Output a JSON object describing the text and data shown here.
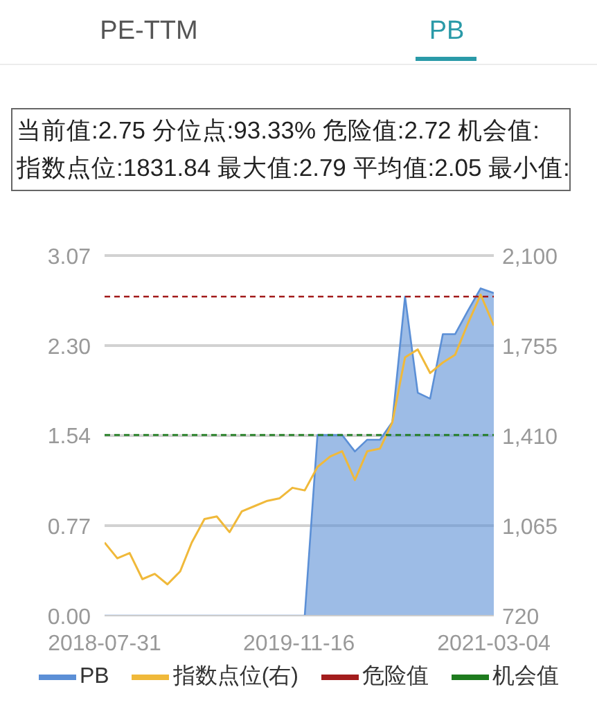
{
  "chart_data": {
    "type": "area",
    "annotations": [
      "PE-TTM",
      "PB",
      "当前值:2.75 分位点:93.33% 危险值:2.72 机会值:",
      "指数点位:1831.84 最大值:2.79 平均值:2.05 最小值:"
    ],
    "x": [
      "2018-07-31",
      "2018-08-31",
      "2018-09-30",
      "2018-10-31",
      "2018-11-30",
      "2018-12-31",
      "2019-01-31",
      "2019-02-28",
      "2019-03-31",
      "2019-04-30",
      "2019-05-31",
      "2019-06-30",
      "2019-07-31",
      "2019-08-31",
      "2019-09-30",
      "2019-10-31",
      "2019-11-30",
      "2019-12-31",
      "2020-01-31",
      "2020-02-29",
      "2020-03-31",
      "2020-04-30",
      "2020-05-31",
      "2020-06-30",
      "2020-07-31",
      "2020-08-31",
      "2020-09-30",
      "2020-10-31",
      "2020-11-30",
      "2020-12-31",
      "2021-01-31",
      "2021-03-04"
    ],
    "series": [
      {
        "name": "PB",
        "color": "#5b8fd6",
        "values": [
          0,
          0,
          0,
          0,
          0,
          0,
          0,
          0,
          0,
          0,
          0,
          0,
          0,
          0,
          0,
          0,
          0,
          1.54,
          1.54,
          1.54,
          1.4,
          1.5,
          1.5,
          1.65,
          2.72,
          1.9,
          1.85,
          2.4,
          2.4,
          2.6,
          2.79,
          2.75
        ]
      },
      {
        "name": "指数点位(右)",
        "type": "line",
        "color": "#f0b93a",
        "axis": "y2",
        "values": [
          1000,
          940,
          960,
          860,
          880,
          840,
          890,
          1000,
          1090,
          1100,
          1040,
          1120,
          1140,
          1160,
          1170,
          1210,
          1200,
          1290,
          1330,
          1350,
          1240,
          1350,
          1360,
          1460,
          1710,
          1740,
          1650,
          1690,
          1720,
          1840,
          1950,
          1831.84
        ]
      }
    ],
    "ref_lines": [
      {
        "axis": "y",
        "value": 2.72,
        "label": "危险值",
        "color": "#a31d1d",
        "line_style": "dashed"
      },
      {
        "axis": "y",
        "value": 1.54,
        "label": "机会值",
        "color": "#1e7b1e",
        "line_style": "dashed"
      }
    ],
    "xlim": [
      "2018-07-31",
      "2021-03-04"
    ],
    "xticks": [
      "2018-07-31",
      "2019-11-16",
      "2021-03-04"
    ],
    "ylim": [
      0,
      3.07
    ],
    "yticks": [
      {
        "value": 0,
        "label": "0.00"
      },
      0.77,
      1.54,
      {
        "value": 2.3,
        "label": "2.30"
      },
      3.07
    ],
    "y2lim": [
      720,
      2100
    ],
    "y2ticks": [
      720,
      {
        "value": 1065,
        "label": "1,065"
      },
      {
        "value": 1410,
        "label": "1,410"
      },
      {
        "value": 1755,
        "label": "1,755"
      },
      {
        "value": 2100,
        "label": "2,100"
      }
    ],
    "grid": "y",
    "legend": "bottom"
  }
}
